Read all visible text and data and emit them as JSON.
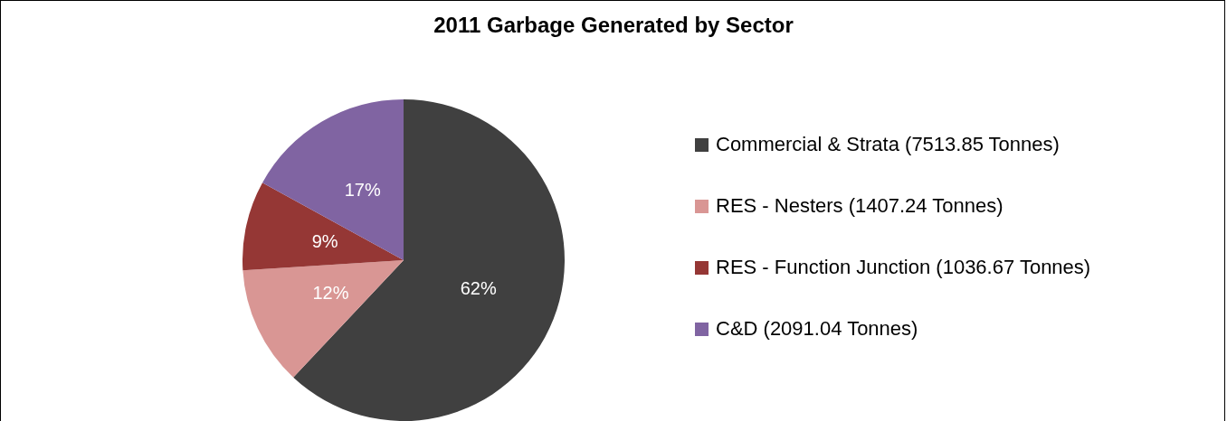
{
  "chart_data": {
    "type": "pie",
    "title": "2011 Garbage Generated by Sector",
    "categories": [
      "Commercial & Strata (7513.85 Tonnes)",
      "RES - Nesters (1407.24 Tonnes)",
      "RES - Function Junction (1036.67 Tonnes)",
      "C&D (2091.04 Tonnes)"
    ],
    "values": [
      62,
      12,
      9,
      17
    ],
    "colors": [
      "#404040",
      "#d99694",
      "#953735",
      "#8064a2"
    ],
    "value_labels": [
      "62%",
      "12%",
      "9%",
      "17%"
    ],
    "legend": "right"
  }
}
